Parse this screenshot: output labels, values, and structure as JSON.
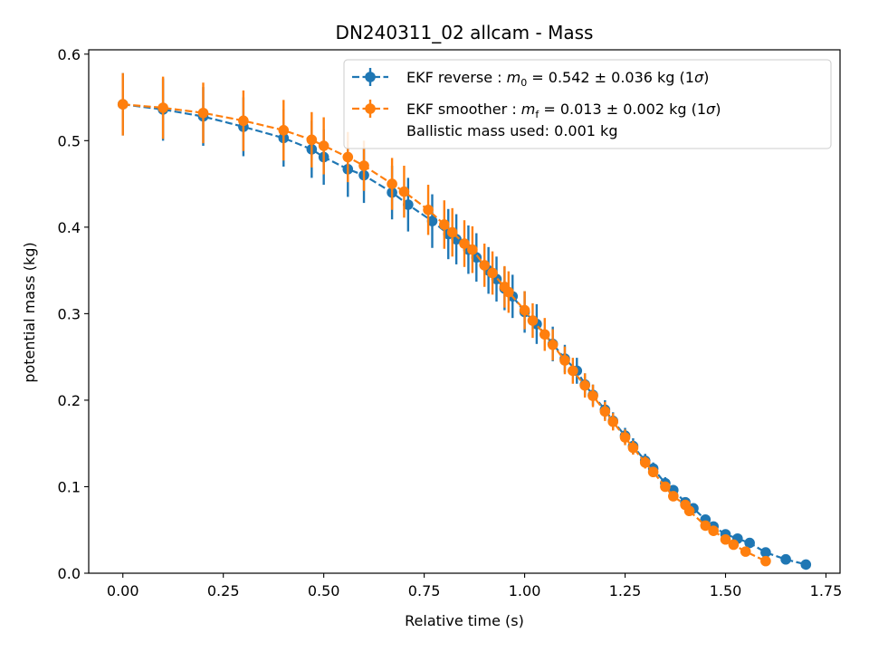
{
  "chart_data": {
    "type": "scatter",
    "title": "DN240311_02 allcam - Mass",
    "xlabel": "Relative time (s)",
    "ylabel": "potential mass (kg)",
    "xlim": [
      -0.085,
      1.785
    ],
    "ylim": [
      0.0,
      0.605
    ],
    "xticks": [
      "0.00",
      "0.25",
      "0.50",
      "0.75",
      "1.00",
      "1.25",
      "1.50",
      "1.75"
    ],
    "yticks": [
      "0.0",
      "0.1",
      "0.2",
      "0.3",
      "0.4",
      "0.5",
      "0.6"
    ],
    "grid": false,
    "legend_position": "top-right",
    "series": [
      {
        "name": "EKF reverse",
        "legend": {
          "prefix": "EKF reverse : ",
          "symbol": "m",
          "subscript": "0",
          "value_text": " =  0.542 ± 0.036 kg (1",
          "sigma": "σ",
          "suffix": ")"
        },
        "color": "#1f77b4",
        "linestyle": "dashed",
        "x": [
          0.0,
          0.1,
          0.2,
          0.3,
          0.4,
          0.47,
          0.5,
          0.56,
          0.6,
          0.67,
          0.71,
          0.77,
          0.81,
          0.83,
          0.86,
          0.88,
          0.91,
          0.93,
          0.95,
          0.97,
          1.0,
          1.03,
          1.07,
          1.1,
          1.13,
          1.15,
          1.17,
          1.2,
          1.22,
          1.25,
          1.27,
          1.3,
          1.32,
          1.35,
          1.37,
          1.4,
          1.42,
          1.45,
          1.47,
          1.5,
          1.53,
          1.56,
          1.6,
          1.65,
          1.7
        ],
        "y": [
          0.542,
          0.536,
          0.528,
          0.516,
          0.503,
          0.49,
          0.481,
          0.467,
          0.46,
          0.44,
          0.426,
          0.407,
          0.392,
          0.386,
          0.374,
          0.365,
          0.35,
          0.34,
          0.329,
          0.32,
          0.302,
          0.288,
          0.265,
          0.248,
          0.234,
          0.218,
          0.206,
          0.189,
          0.176,
          0.159,
          0.147,
          0.13,
          0.121,
          0.104,
          0.096,
          0.082,
          0.075,
          0.062,
          0.054,
          0.045,
          0.04,
          0.035,
          0.024,
          0.016,
          0.01
        ],
        "err": [
          0.036,
          0.036,
          0.034,
          0.034,
          0.033,
          0.033,
          0.032,
          0.032,
          0.032,
          0.031,
          0.031,
          0.031,
          0.029,
          0.029,
          0.028,
          0.028,
          0.027,
          0.026,
          0.025,
          0.025,
          0.024,
          0.023,
          0.02,
          0.016,
          0.015,
          0.013,
          0.012,
          0.011,
          0.01,
          0.009,
          0.009,
          0.008,
          0.007,
          0.007,
          0.006,
          0.005,
          0.005,
          0.004,
          0.004,
          0.003,
          0.003,
          0.003,
          0.002,
          0.002,
          0.002
        ]
      },
      {
        "name": "EKF smoother",
        "legend": {
          "prefix": "EKF smoother : ",
          "symbol": "m",
          "subscript": "f",
          "value_text": " =  0.013 ± 0.002 kg (1",
          "sigma": "σ",
          "suffix": ")",
          "line2": " Ballistic mass used: 0.001 kg"
        },
        "color": "#ff7f0e",
        "linestyle": "dashed",
        "x": [
          0.0,
          0.1,
          0.2,
          0.3,
          0.4,
          0.47,
          0.5,
          0.56,
          0.6,
          0.67,
          0.7,
          0.76,
          0.8,
          0.82,
          0.85,
          0.87,
          0.9,
          0.92,
          0.95,
          0.96,
          1.0,
          1.02,
          1.05,
          1.07,
          1.1,
          1.12,
          1.15,
          1.17,
          1.2,
          1.22,
          1.25,
          1.27,
          1.3,
          1.32,
          1.35,
          1.37,
          1.4,
          1.41,
          1.45,
          1.47,
          1.5,
          1.52,
          1.55,
          1.6
        ],
        "y": [
          0.542,
          0.538,
          0.532,
          0.523,
          0.512,
          0.501,
          0.494,
          0.481,
          0.471,
          0.45,
          0.441,
          0.42,
          0.403,
          0.394,
          0.381,
          0.374,
          0.356,
          0.347,
          0.331,
          0.325,
          0.304,
          0.292,
          0.276,
          0.264,
          0.246,
          0.234,
          0.217,
          0.205,
          0.187,
          0.175,
          0.157,
          0.145,
          0.128,
          0.117,
          0.1,
          0.089,
          0.079,
          0.072,
          0.055,
          0.049,
          0.039,
          0.033,
          0.025,
          0.014
        ],
        "err": [
          0.036,
          0.036,
          0.035,
          0.035,
          0.035,
          0.032,
          0.033,
          0.029,
          0.029,
          0.03,
          0.03,
          0.029,
          0.028,
          0.028,
          0.027,
          0.027,
          0.025,
          0.025,
          0.024,
          0.024,
          0.022,
          0.02,
          0.019,
          0.018,
          0.016,
          0.015,
          0.014,
          0.013,
          0.011,
          0.01,
          0.009,
          0.008,
          0.007,
          0.006,
          0.005,
          0.005,
          0.004,
          0.004,
          0.003,
          0.003,
          0.003,
          0.002,
          0.002,
          0.002
        ]
      }
    ]
  }
}
